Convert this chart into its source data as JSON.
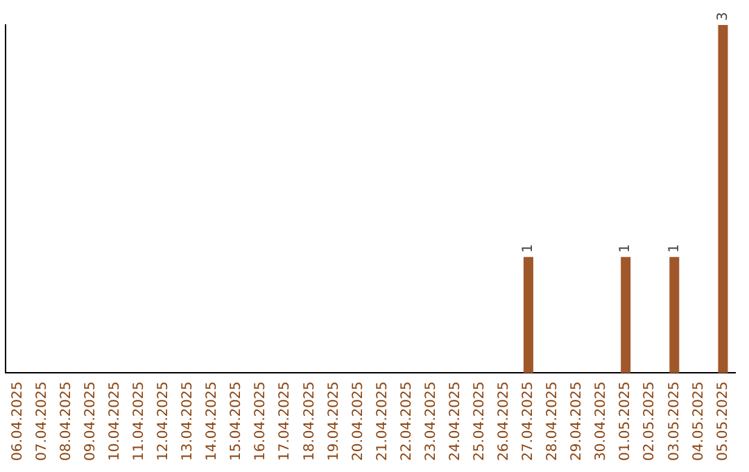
{
  "chart_data": {
    "type": "bar",
    "categories": [
      "06.04.2025",
      "07.04.2025",
      "08.04.2025",
      "09.04.2025",
      "10.04.2025",
      "11.04.2025",
      "12.04.2025",
      "13.04.2025",
      "14.04.2025",
      "15.04.2025",
      "16.04.2025",
      "17.04.2025",
      "18.04.2025",
      "19.04.2025",
      "20.04.2025",
      "21.04.2025",
      "22.04.2025",
      "23.04.2025",
      "24.04.2025",
      "25.04.2025",
      "26.04.2025",
      "27.04.2025",
      "28.04.2025",
      "29.04.2025",
      "30.04.2025",
      "01.05.2025",
      "02.05.2025",
      "03.05.2025",
      "04.05.2025",
      "05.05.2025"
    ],
    "values": [
      null,
      null,
      null,
      null,
      null,
      null,
      null,
      null,
      null,
      null,
      null,
      null,
      null,
      null,
      null,
      null,
      null,
      null,
      null,
      null,
      null,
      1,
      null,
      null,
      null,
      1,
      null,
      1,
      null,
      3
    ],
    "data_labels": true,
    "color": "#a0572a",
    "grid": false,
    "legend": false,
    "tick_labels": "x"
  }
}
